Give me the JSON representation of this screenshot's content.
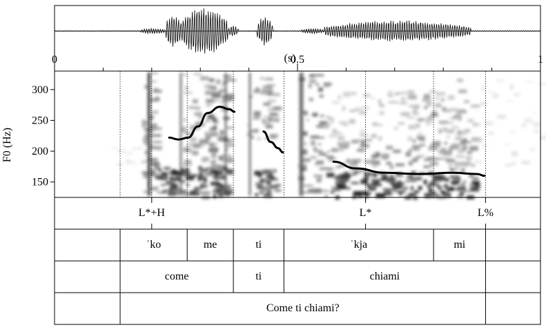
{
  "time_axis": {
    "unit_label": "(s)",
    "ticks": [
      "0",
      "0.5",
      "1"
    ],
    "range_s": [
      0,
      1.0
    ]
  },
  "pitch_axis": {
    "label": "F0 (Hz)",
    "ticks": [
      "150",
      "200",
      "250",
      "300"
    ],
    "range_hz": [
      125,
      330
    ]
  },
  "tiers": {
    "tones": [
      {
        "label": "L*+H",
        "t": 0.2
      },
      {
        "label": "L*",
        "t": 0.64
      },
      {
        "label": "L%",
        "t": 0.887
      }
    ],
    "syllables": [
      {
        "label": "ˈko",
        "start": 0.135,
        "end": 0.273
      },
      {
        "label": "me",
        "start": 0.273,
        "end": 0.368
      },
      {
        "label": "ti",
        "start": 0.368,
        "end": 0.472
      },
      {
        "label": "ˈkja",
        "start": 0.472,
        "end": 0.78
      },
      {
        "label": "mi",
        "start": 0.78,
        "end": 0.887
      }
    ],
    "words": [
      {
        "label": "come",
        "start": 0.135,
        "end": 0.368
      },
      {
        "label": "ti",
        "start": 0.368,
        "end": 0.472
      },
      {
        "label": "chiami",
        "start": 0.472,
        "end": 0.887
      }
    ],
    "utterance": [
      {
        "label": "Come ti chiami?",
        "start": 0.135,
        "end": 0.887
      }
    ]
  },
  "chart_data": {
    "type": "line",
    "xlabel": "(s)",
    "ylabel": "F0 (Hz)",
    "xlim": [
      0,
      1.0
    ],
    "ylim": [
      125,
      330
    ],
    "series": [
      {
        "x": [
          0.236,
          0.255,
          0.275,
          0.295,
          0.315,
          0.34,
          0.36,
          0.37
        ],
        "y": [
          222,
          219,
          222,
          240,
          262,
          272,
          268,
          264
        ]
      },
      {
        "x": [
          0.43,
          0.445,
          0.46,
          0.47
        ],
        "y": [
          232,
          215,
          205,
          198
        ]
      },
      {
        "x": [
          0.574,
          0.62,
          0.68,
          0.75,
          0.82,
          0.87,
          0.885
        ],
        "y": [
          183,
          172,
          165,
          163,
          165,
          163,
          160
        ]
      }
    ]
  }
}
